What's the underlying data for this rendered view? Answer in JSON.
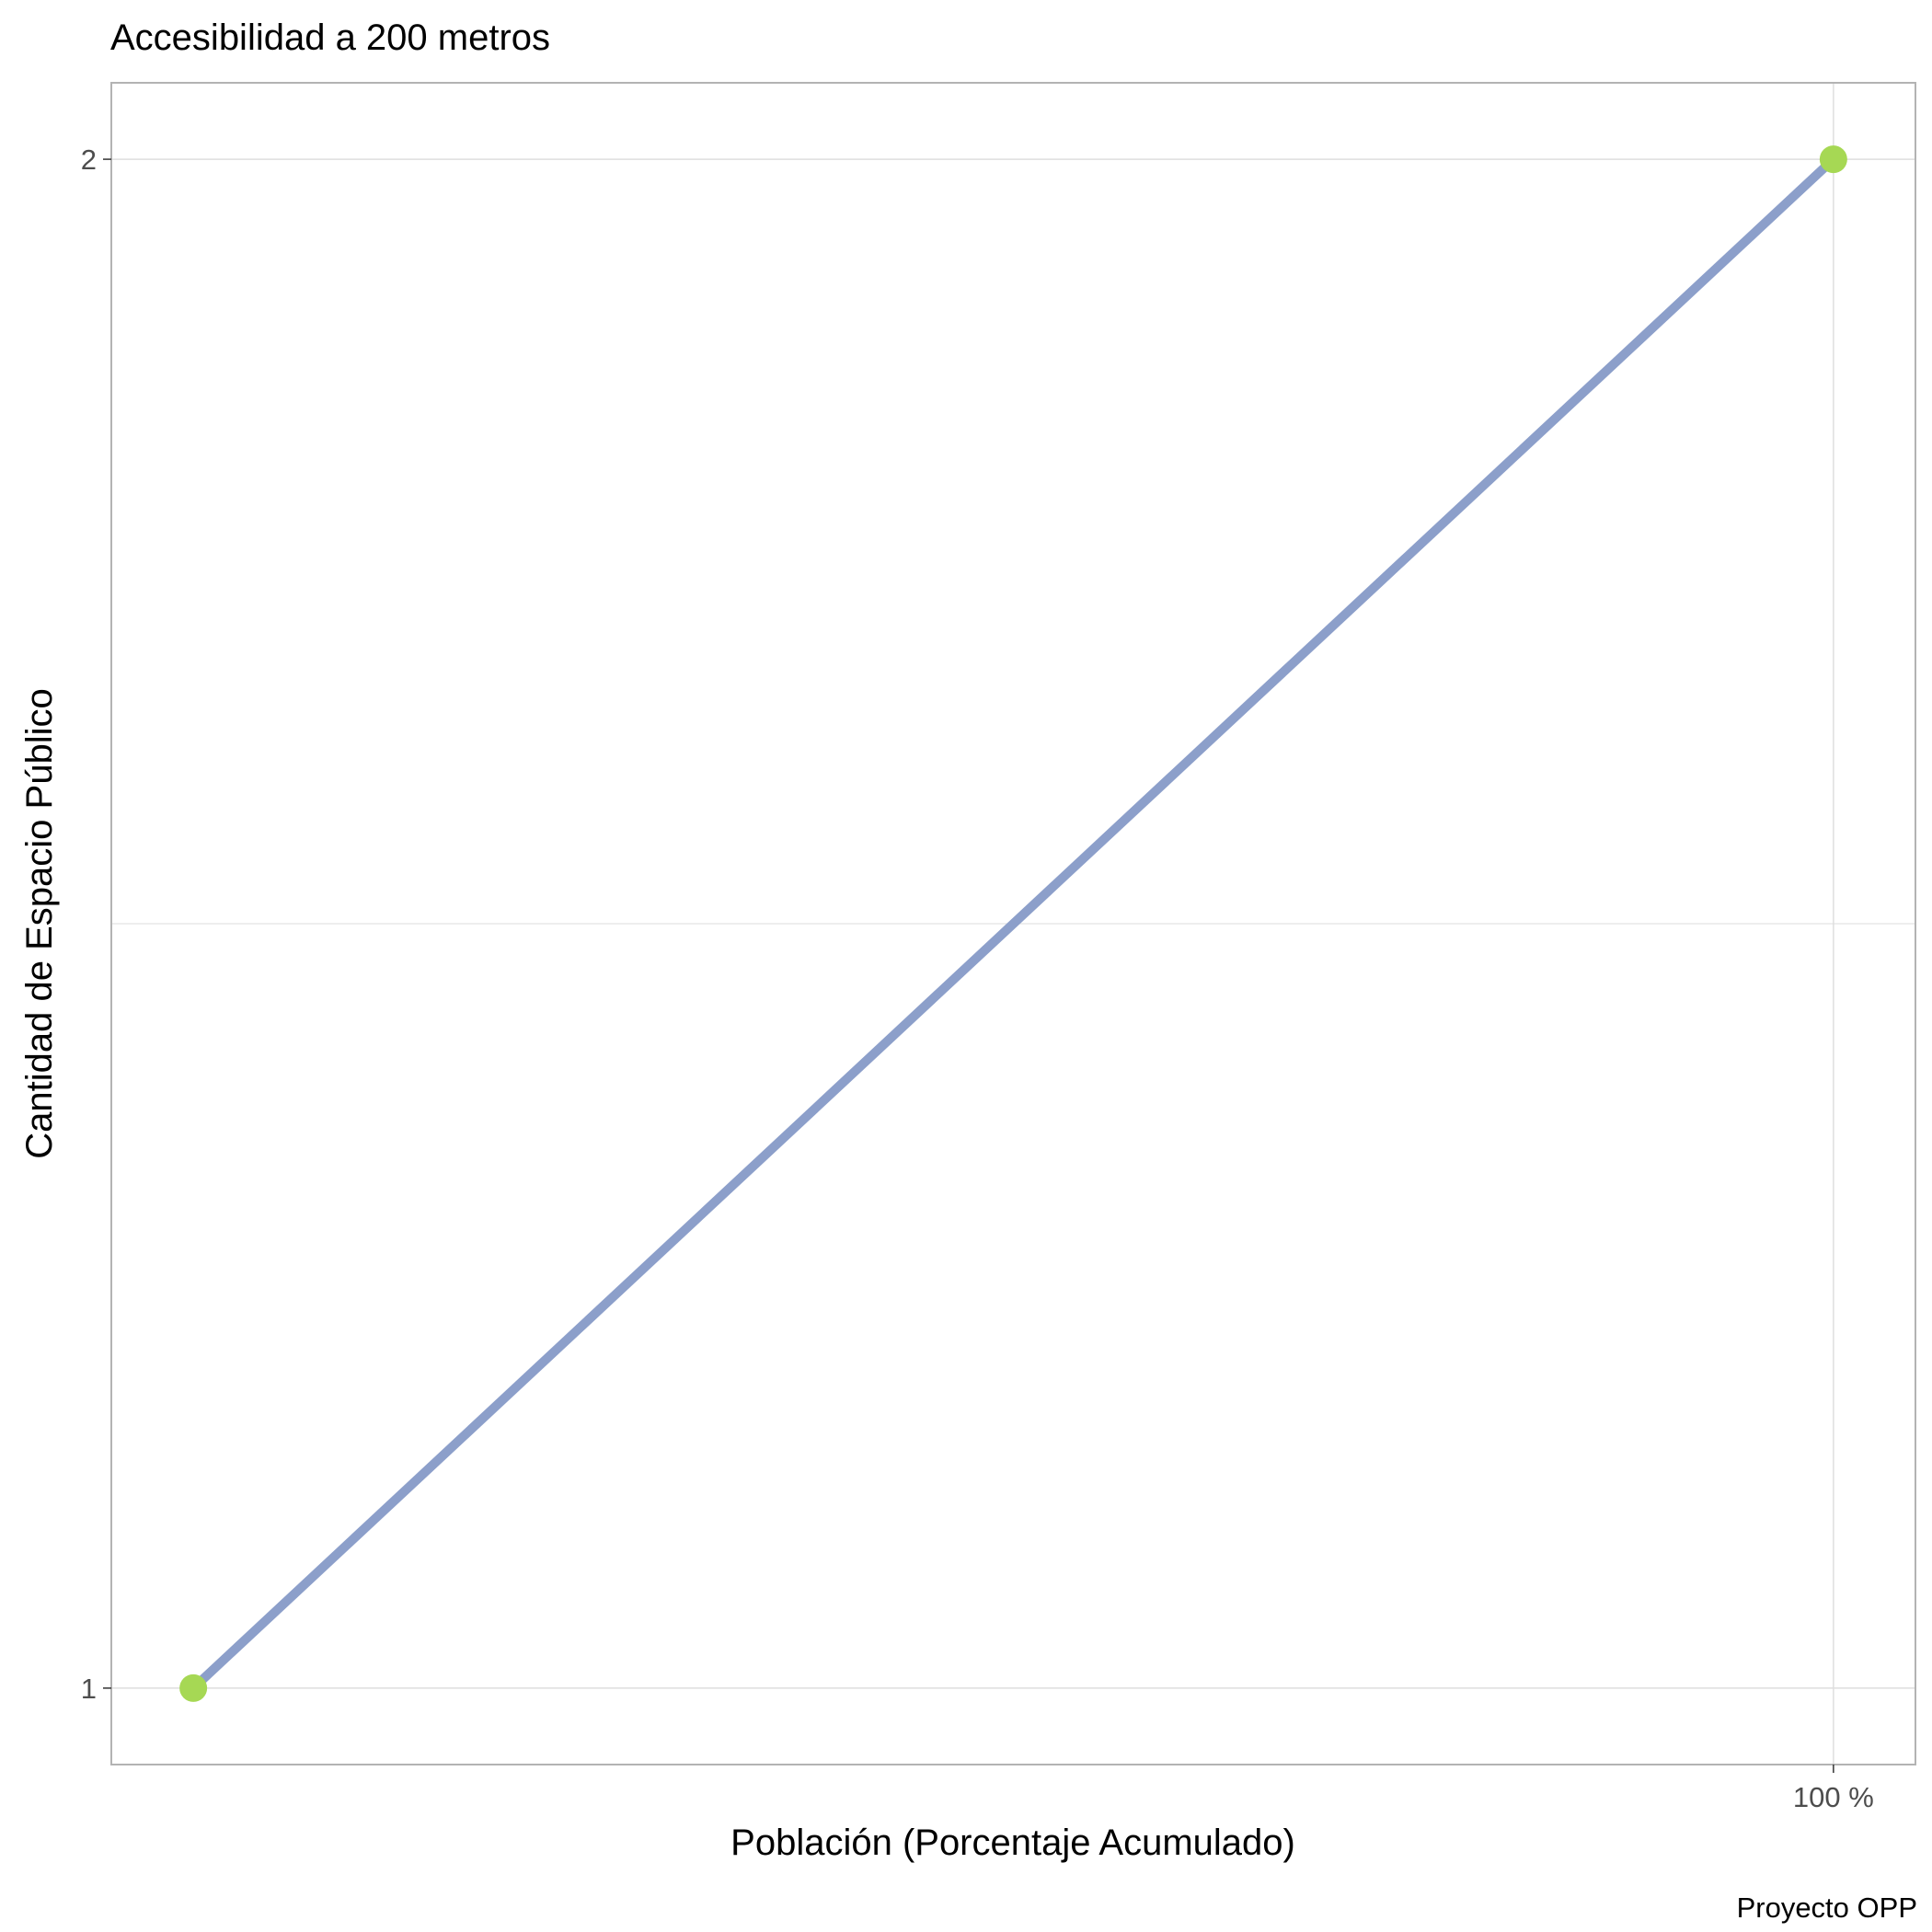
{
  "chart_data": {
    "type": "line",
    "title": "Accesibilidad a 200 metros",
    "xlabel": "Población (Porcentaje Acumulado)",
    "ylabel": "Cantidad de Espacio Público",
    "caption": "Proyecto OPP",
    "x_ticks": [
      {
        "value": 100,
        "label": "100 %"
      }
    ],
    "y_ticks": [
      {
        "value": 1,
        "label": "1"
      },
      {
        "value": 2,
        "label": "2"
      }
    ],
    "y_minor_gridlines": [
      1.5
    ],
    "xlim": [
      -5,
      105
    ],
    "ylim": [
      0.95,
      2.05
    ],
    "grid": true,
    "series": [
      {
        "x": [
          0,
          100
        ],
        "y": [
          1,
          2
        ]
      }
    ],
    "colors": {
      "line": "#8c9fca",
      "points": "#a6d854",
      "grid": "#dedede",
      "panel_border": "#b3b3b3"
    }
  }
}
